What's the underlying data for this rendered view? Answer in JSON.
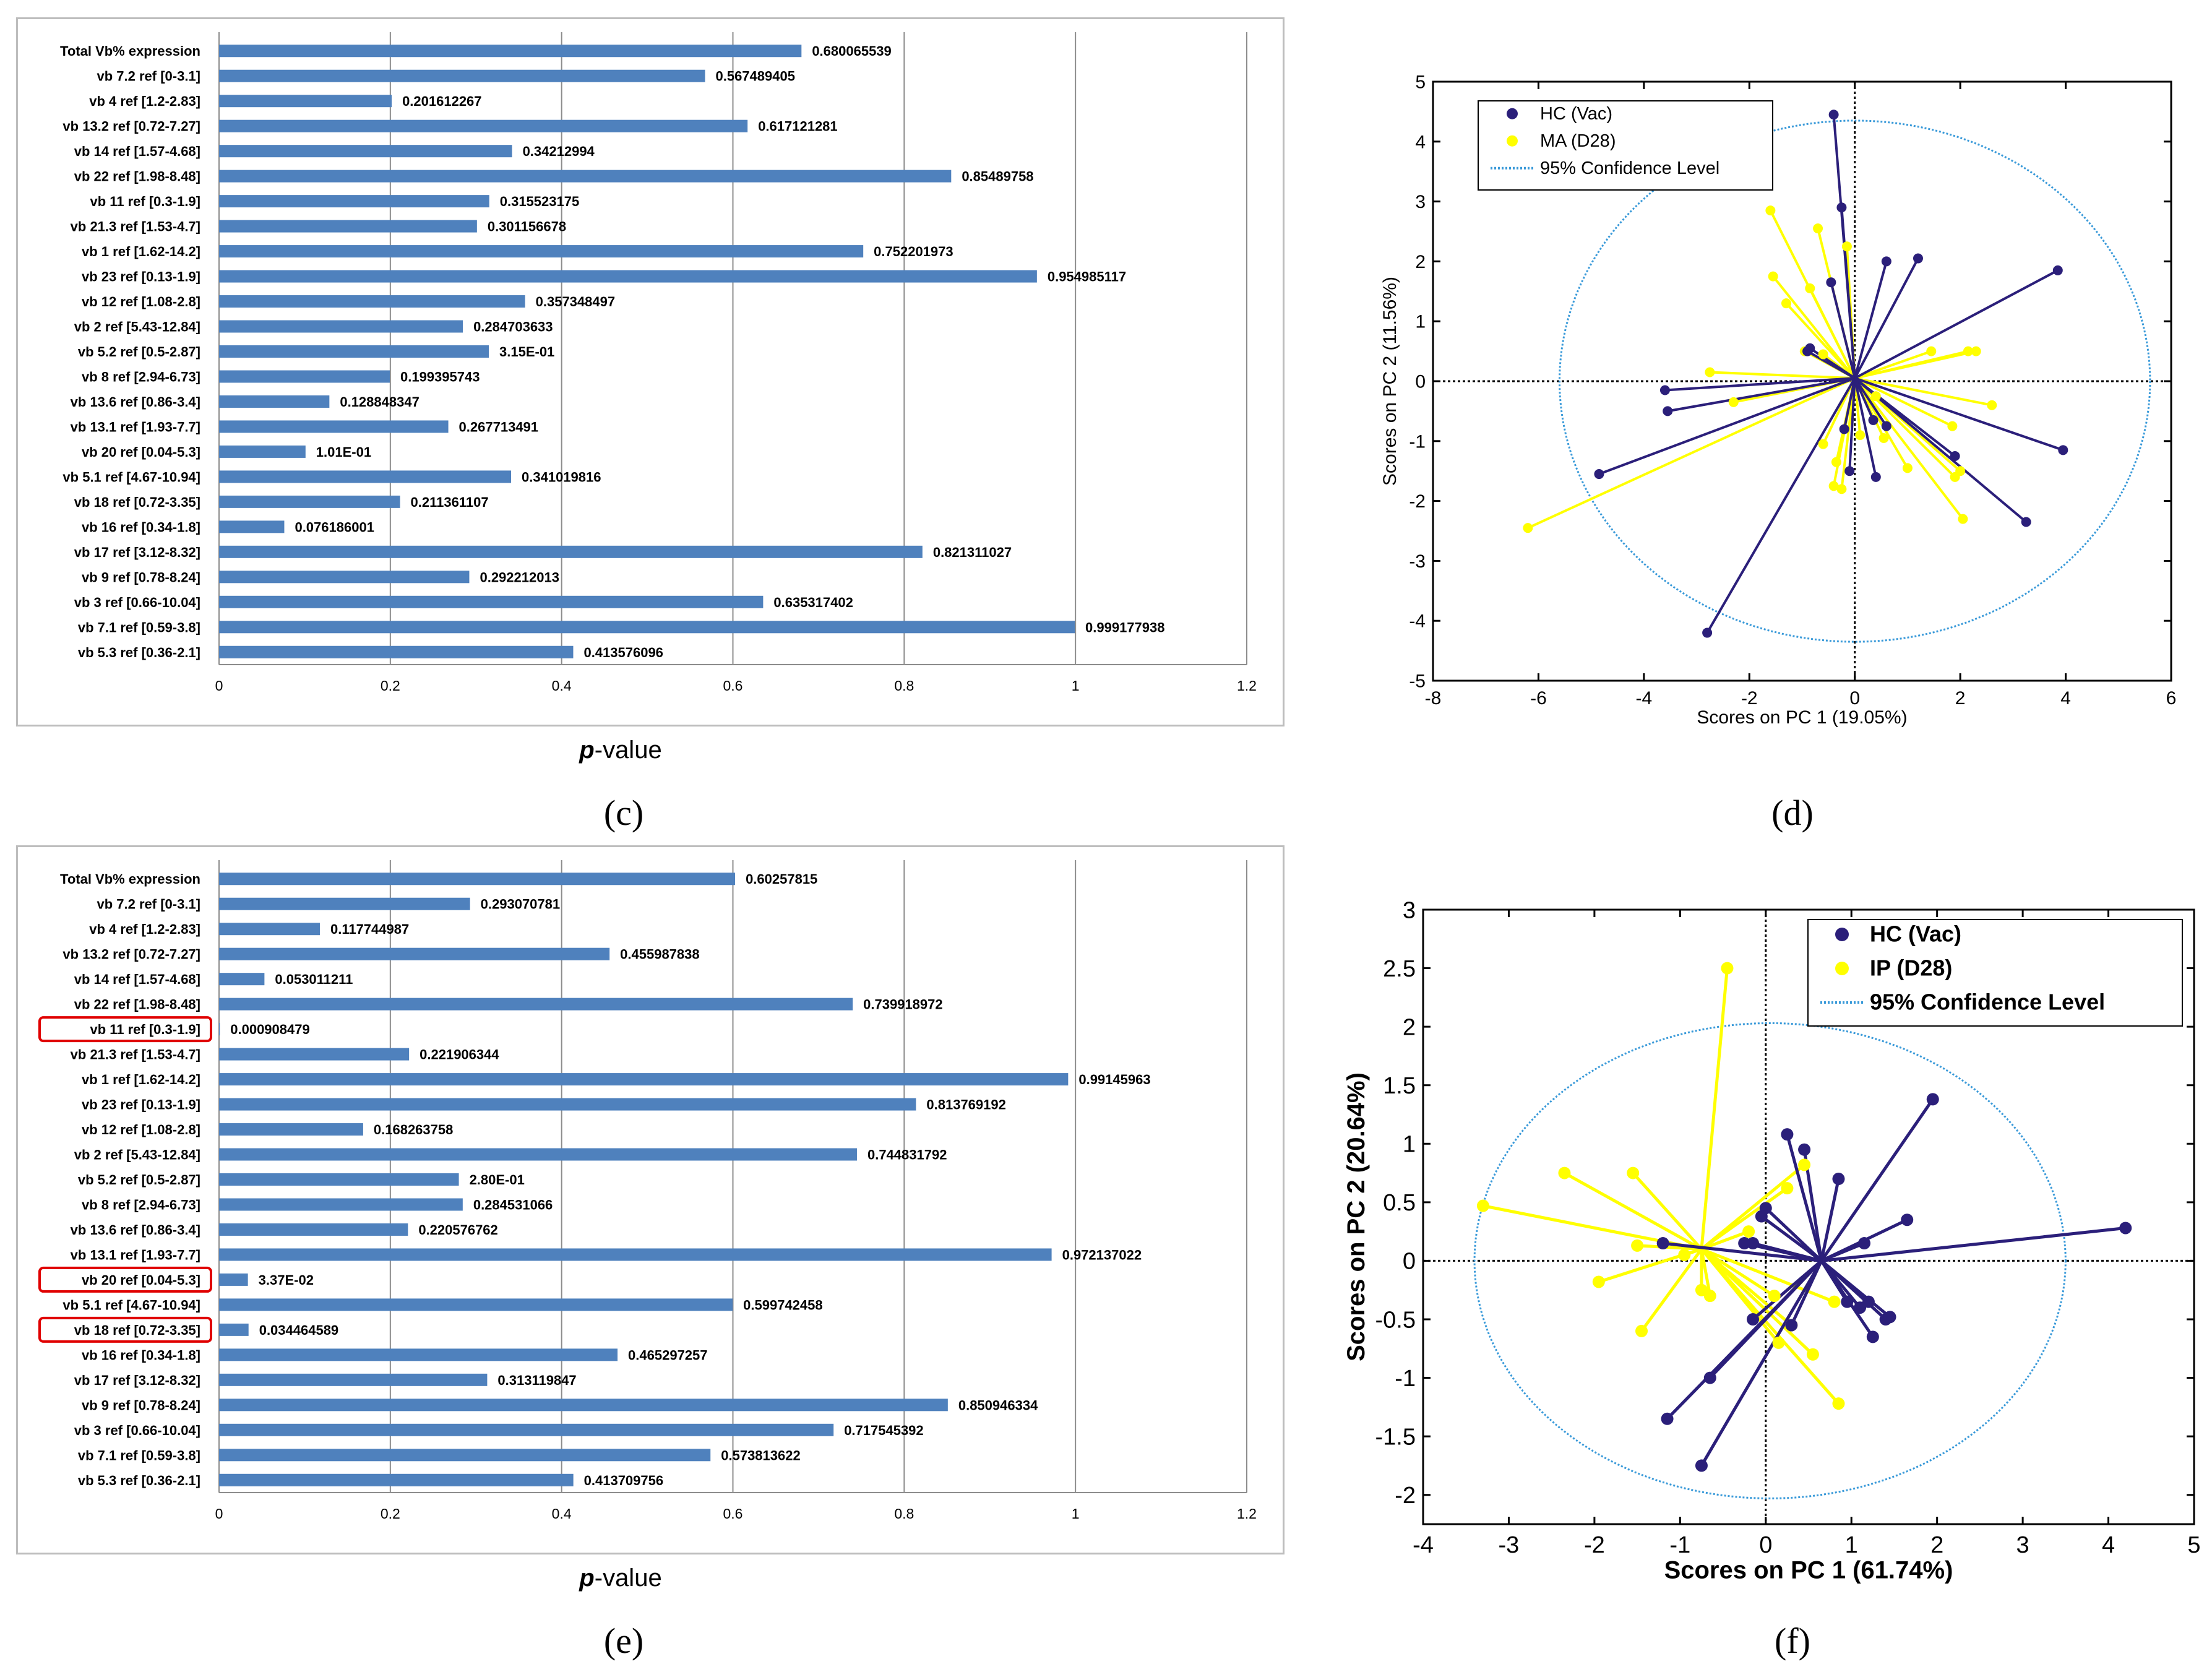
{
  "panels": {
    "c": {
      "label": "(c)",
      "xlabel_italic": "p",
      "xlabel_rest": "-value"
    },
    "d": {
      "label": "(d)"
    },
    "e": {
      "label": "(e)",
      "xlabel_italic": "p",
      "xlabel_rest": "-value"
    },
    "f": {
      "label": "(f)"
    }
  },
  "colors": {
    "bar": "#4f81bd",
    "hc": "#2b1f7a",
    "group2": "#ffff00",
    "ellipse": "#3a9ad9",
    "highlight": "#e00000"
  },
  "chart_data": [
    {
      "id": "c",
      "type": "bar",
      "orientation": "horizontal",
      "categories": [
        "Total Vb% expression",
        "vb 7.2  ref [0-3.1]",
        "vb 4  ref [1.2-2.83]",
        "vb 13.2  ref [0.72-7.27]",
        "vb 14  ref [1.57-4.68]",
        "vb 22  ref [1.98-8.48]",
        "vb 11  ref [0.3-1.9]",
        "vb 21.3  ref [1.53-4.7]",
        "vb 1  ref [1.62-14.2]",
        "vb 23  ref [0.13-1.9]",
        "vb 12  ref [1.08-2.8]",
        "vb 2  ref [5.43-12.84]",
        "vb 5.2  ref [0.5-2.87]",
        "vb 8  ref [2.94-6.73]",
        "vb 13.6  ref [0.86-3.4]",
        "vb 13.1  ref [1.93-7.7]",
        "vb 20  ref [0.04-5.3]",
        "vb 5.1  ref [4.67-10.94]",
        "vb 18  ref [0.72-3.35]",
        "vb 16  ref [0.34-1.8]",
        "vb 17  ref [3.12-8.32]",
        "vb 9  ref [0.78-8.24]",
        "vb 3  ref [0.66-10.04]",
        "vb 7.1  ref [0.59-3.8]",
        "vb 5.3  ref [0.36-2.1]"
      ],
      "values": [
        0.680065539,
        0.567489405,
        0.201612267,
        0.617121281,
        0.34212994,
        0.85489758,
        0.315523175,
        0.301156678,
        0.752201973,
        0.954985117,
        0.357348497,
        0.284703633,
        0.315,
        0.199395743,
        0.128848347,
        0.267713491,
        0.101,
        0.341019816,
        0.211361107,
        0.076186001,
        0.821311027,
        0.292212013,
        0.635317402,
        0.999177938,
        0.413576096
      ],
      "value_labels": [
        "0.680065539",
        "0.567489405",
        "0.201612267",
        "0.617121281",
        "0.34212994",
        "0.85489758",
        "0.315523175",
        "0.301156678",
        "0.752201973",
        "0.954985117",
        "0.357348497",
        "0.284703633",
        "3.15E-01",
        "0.199395743",
        "0.128848347",
        "0.267713491",
        "1.01E-01",
        "0.341019816",
        "0.211361107",
        "0.076186001",
        "0.821311027",
        "0.292212013",
        "0.635317402",
        "0.999177938",
        "0.413576096"
      ],
      "highlighted": [],
      "xlim": [
        0,
        1.2
      ],
      "xticks": [
        "0",
        "0.2",
        "0.4",
        "0.6",
        "0.8",
        "1",
        "1.2"
      ],
      "xlabel": "p-value"
    },
    {
      "id": "d",
      "type": "scatter",
      "xlabel": "Scores on PC 1 (19.05%)",
      "ylabel": "Scores on PC 2 (11.56%)",
      "xlim": [
        -8,
        6
      ],
      "ylim": [
        -5,
        5
      ],
      "xticks": [
        "-8",
        "-6",
        "-4",
        "-2",
        "0",
        "2",
        "4",
        "6"
      ],
      "yticks": [
        "-5",
        "-4",
        "-3",
        "-2",
        "-1",
        "0",
        "1",
        "2",
        "3",
        "4",
        "5"
      ],
      "centroid_hc": [
        0.0,
        0.05
      ],
      "centroid_g2": [
        0.0,
        0.05
      ],
      "ellipse": {
        "cx": 0,
        "cy": 0,
        "rx": 5.6,
        "ry": 4.35
      },
      "legend": [
        "HC (Vac)",
        "MA (D28)",
        "95% Confidence Level"
      ],
      "series": [
        {
          "name": "HC (Vac)",
          "points": [
            [
              -0.4,
              4.45
            ],
            [
              -0.25,
              2.9
            ],
            [
              0.6,
              2.0
            ],
            [
              1.2,
              2.05
            ],
            [
              -0.45,
              1.65
            ],
            [
              -0.85,
              0.55
            ],
            [
              -0.9,
              0.5
            ],
            [
              3.85,
              1.85
            ],
            [
              -3.6,
              -0.15
            ],
            [
              -3.55,
              -0.5
            ],
            [
              -4.85,
              -1.55
            ],
            [
              -2.8,
              -4.2
            ],
            [
              0.6,
              -0.75
            ],
            [
              -0.2,
              -0.8
            ],
            [
              -0.1,
              -1.5
            ],
            [
              0.4,
              -1.6
            ],
            [
              0.35,
              -0.65
            ],
            [
              1.9,
              -1.25
            ],
            [
              3.95,
              -1.15
            ],
            [
              3.25,
              -2.35
            ]
          ]
        },
        {
          "name": "MA (D28)",
          "points": [
            [
              -1.6,
              2.85
            ],
            [
              -0.7,
              2.55
            ],
            [
              -0.15,
              2.25
            ],
            [
              -1.55,
              1.75
            ],
            [
              -0.85,
              1.55
            ],
            [
              -1.3,
              1.3
            ],
            [
              -0.95,
              0.5
            ],
            [
              -0.6,
              0.45
            ],
            [
              -2.75,
              0.15
            ],
            [
              -2.3,
              -0.35
            ],
            [
              -6.2,
              -2.45
            ],
            [
              -0.6,
              -1.05
            ],
            [
              -0.35,
              -1.35
            ],
            [
              -0.4,
              -1.75
            ],
            [
              -0.25,
              -1.8
            ],
            [
              0.1,
              -0.9
            ],
            [
              0.4,
              -0.25
            ],
            [
              1.0,
              -1.45
            ],
            [
              1.45,
              0.5
            ],
            [
              2.15,
              0.5
            ],
            [
              2.3,
              0.5
            ],
            [
              2.6,
              -0.4
            ],
            [
              1.85,
              -0.75
            ],
            [
              2.0,
              -1.5
            ],
            [
              1.9,
              -1.6
            ],
            [
              2.05,
              -2.3
            ],
            [
              0.55,
              -0.95
            ]
          ]
        }
      ]
    },
    {
      "id": "e",
      "type": "bar",
      "orientation": "horizontal",
      "categories": [
        "Total Vb% expression",
        "vb 7.2  ref [0-3.1]",
        "vb 4  ref [1.2-2.83]",
        "vb 13.2  ref [0.72-7.27]",
        "vb 14  ref [1.57-4.68]",
        "vb 22  ref [1.98-8.48]",
        "vb 11  ref [0.3-1.9]",
        "vb 21.3  ref [1.53-4.7]",
        "vb 1  ref [1.62-14.2]",
        "vb 23  ref [0.13-1.9]",
        "vb 12  ref [1.08-2.8]",
        "vb 2  ref [5.43-12.84]",
        "vb 5.2  ref [0.5-2.87]",
        "vb 8  ref [2.94-6.73]",
        "vb 13.6  ref [0.86-3.4]",
        "vb 13.1  ref [1.93-7.7]",
        "vb 20  ref [0.04-5.3]",
        "vb 5.1  ref [4.67-10.94]",
        "vb 18  ref [0.72-3.35]",
        "vb 16  ref [0.34-1.8]",
        "vb 17  ref [3.12-8.32]",
        "vb 9  ref [0.78-8.24]",
        "vb 3  ref [0.66-10.04]",
        "vb 7.1  ref [0.59-3.8]",
        "vb 5.3  ref [0.36-2.1]"
      ],
      "values": [
        0.60257815,
        0.293070781,
        0.117744987,
        0.455987838,
        0.053011211,
        0.739918972,
        0.000908479,
        0.221906344,
        0.99145963,
        0.813769192,
        0.168263758,
        0.744831792,
        0.28,
        0.284531066,
        0.220576762,
        0.972137022,
        0.0337,
        0.599742458,
        0.034464589,
        0.465297257,
        0.313119847,
        0.850946334,
        0.717545392,
        0.573813622,
        0.413709756
      ],
      "value_labels": [
        "0.60257815",
        "0.293070781",
        "0.117744987",
        "0.455987838",
        "0.053011211",
        "0.739918972",
        "0.000908479",
        "0.221906344",
        "0.99145963",
        "0.813769192",
        "0.168263758",
        "0.744831792",
        "2.80E-01",
        "0.284531066",
        "0.220576762",
        "0.972137022",
        "3.37E-02",
        "0.599742458",
        "0.034464589",
        "0.465297257",
        "0.313119847",
        "0.850946334",
        "0.717545392",
        "0.573813622",
        "0.413709756"
      ],
      "highlighted": [
        6,
        16,
        18
      ],
      "xlim": [
        0,
        1.2
      ],
      "xticks": [
        "0",
        "0.2",
        "0.4",
        "0.6",
        "0.8",
        "1",
        "1.2"
      ],
      "xlabel": "p-value"
    },
    {
      "id": "f",
      "type": "scatter",
      "xlabel": "Scores on PC 1 (61.74%)",
      "ylabel": "Scores on PC 2 (20.64%)",
      "xlim": [
        -4,
        5
      ],
      "ylim": [
        -2.25,
        3
      ],
      "xticks": [
        "-4",
        "-3",
        "-2",
        "-1",
        "0",
        "1",
        "2",
        "3",
        "4",
        "5"
      ],
      "yticks": [
        "-2",
        "-1.5",
        "-1",
        "-0.5",
        "0",
        "0.5",
        "1",
        "1.5",
        "2",
        "2.5",
        "3"
      ],
      "centroid_hc": [
        0.65,
        0.0
      ],
      "centroid_g2": [
        -0.75,
        0.1
      ],
      "ellipse": {
        "cx": 0.05,
        "cy": 0.0,
        "rx": 3.45,
        "ry": 2.03
      },
      "legend": [
        "HC (Vac)",
        "IP (D28)",
        "95% Confidence Level"
      ],
      "series": [
        {
          "name": "HC (Vac)",
          "points": [
            [
              1.95,
              1.38
            ],
            [
              0.25,
              1.08
            ],
            [
              0.45,
              0.95
            ],
            [
              0.85,
              0.7
            ],
            [
              1.65,
              0.35
            ],
            [
              4.2,
              0.28
            ],
            [
              0.0,
              0.45
            ],
            [
              -0.05,
              0.38
            ],
            [
              1.15,
              0.15
            ],
            [
              -0.15,
              0.15
            ],
            [
              -0.25,
              0.15
            ],
            [
              -1.2,
              0.15
            ],
            [
              0.95,
              -0.35
            ],
            [
              1.1,
              -0.4
            ],
            [
              1.2,
              -0.35
            ],
            [
              1.4,
              -0.5
            ],
            [
              1.45,
              -0.48
            ],
            [
              1.25,
              -0.65
            ],
            [
              0.3,
              -0.55
            ],
            [
              -0.15,
              -0.5
            ],
            [
              -0.65,
              -1.0
            ],
            [
              -1.15,
              -1.35
            ],
            [
              -0.75,
              -1.75
            ]
          ]
        },
        {
          "name": "IP (D28)",
          "points": [
            [
              -0.45,
              2.5
            ],
            [
              0.45,
              0.82
            ],
            [
              0.25,
              0.62
            ],
            [
              -0.2,
              0.25
            ],
            [
              -2.35,
              0.75
            ],
            [
              -1.55,
              0.75
            ],
            [
              -3.3,
              0.47
            ],
            [
              -1.5,
              0.13
            ],
            [
              -1.95,
              -0.18
            ],
            [
              -0.95,
              0.05
            ],
            [
              -0.75,
              -0.25
            ],
            [
              -0.65,
              -0.3
            ],
            [
              -1.45,
              -0.6
            ],
            [
              0.1,
              -0.3
            ],
            [
              0.3,
              -0.55
            ],
            [
              0.15,
              -0.7
            ],
            [
              0.55,
              -0.8
            ],
            [
              0.8,
              -0.35
            ],
            [
              0.85,
              -1.22
            ]
          ]
        }
      ]
    }
  ]
}
